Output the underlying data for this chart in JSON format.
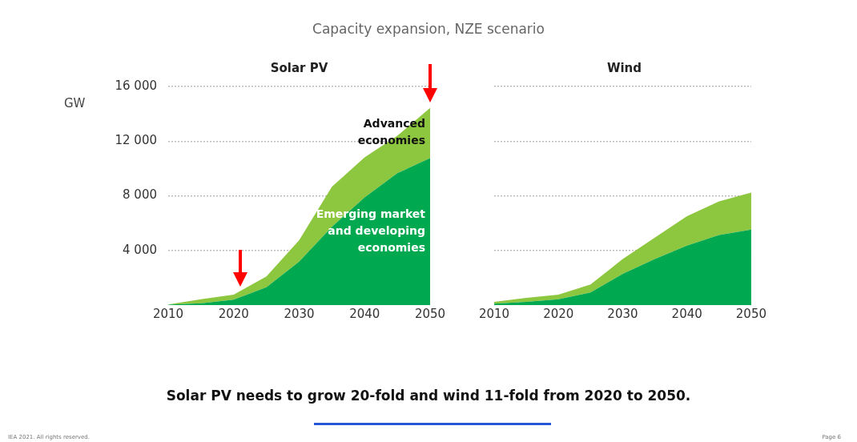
{
  "chart_data": [
    {
      "type": "area",
      "title": "Solar PV",
      "ylabel": "GW",
      "stacked": true,
      "grid": "y",
      "line_style": "dotted",
      "xlim": [
        2010,
        2050
      ],
      "xticks": [
        2010,
        2020,
        2030,
        2040,
        2050
      ],
      "ylim": [
        0,
        16000
      ],
      "yticks": [
        {
          "value": 4000,
          "label": "4 000"
        },
        {
          "value": 8000,
          "label": "8 000"
        },
        {
          "value": 12000,
          "label": "12 000"
        },
        {
          "value": 16000,
          "label": "16 000"
        }
      ],
      "x": [
        2010,
        2015,
        2020,
        2025,
        2030,
        2035,
        2040,
        2045,
        2050
      ],
      "series": [
        {
          "name": "Emerging market and developing economies",
          "color": "#00a94f",
          "values": [
            30,
            130,
            390,
            1310,
            3180,
            5730,
            7880,
            9650,
            10760
          ]
        },
        {
          "name": "Advanced economies",
          "color": "#8dc63f",
          "values": [
            20,
            300,
            370,
            790,
            1560,
            2930,
            2940,
            2740,
            3670
          ]
        }
      ],
      "annotations": [
        "Capacity expansion, NZE scenario",
        "Solar PV needs to grow 20-fold and wind 11-fold from 2020 to 2050.",
        "IEA 2021. All rights reserved.",
        "Page 6"
      ]
    },
    {
      "type": "area",
      "title": "Wind",
      "stacked": true,
      "grid": "y",
      "line_style": "dotted",
      "tick_labels": "x",
      "xlim": [
        2010,
        2050
      ],
      "xticks": [
        2010,
        2020,
        2030,
        2040,
        2050
      ],
      "ylim": [
        0,
        16000
      ],
      "yticks": [
        4000,
        8000,
        12000,
        16000
      ],
      "x": [
        2010,
        2015,
        2020,
        2025,
        2030,
        2035,
        2040,
        2045,
        2050
      ],
      "series": [
        {
          "color": "#00a94f",
          "values": [
            100,
            230,
            430,
            920,
            2290,
            3370,
            4350,
            5130,
            5520
          ]
        },
        {
          "color": "#8dc63f",
          "values": [
            130,
            300,
            330,
            590,
            1080,
            1570,
            2160,
            2460,
            2720
          ]
        }
      ]
    }
  ]
}
